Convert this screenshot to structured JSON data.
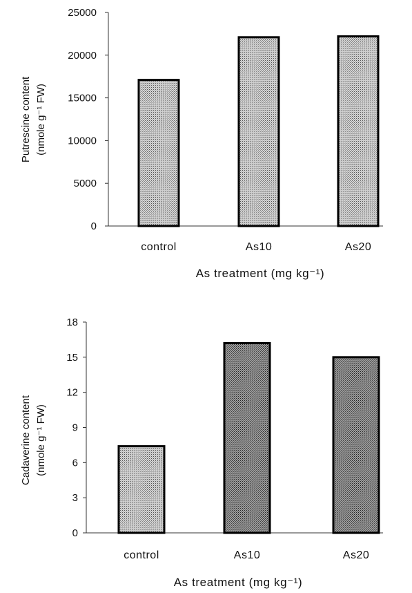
{
  "chart_data": [
    {
      "type": "bar",
      "categories": [
        "control",
        "As10",
        "As20"
      ],
      "values": [
        17100,
        22100,
        22200
      ],
      "ylim": [
        0,
        25000
      ],
      "yticks": [
        "0",
        "5000",
        "10000",
        "15000",
        "20000",
        "25000"
      ],
      "ylabel_line1": "Putrescine content",
      "ylabel_line2": "(nmole g⁻¹ FW)",
      "xlabel": "As treatment (mg kg⁻¹)",
      "grid": false,
      "bar_fill": "#b9b9b9"
    },
    {
      "type": "bar",
      "categories": [
        "control",
        "As10",
        "As20"
      ],
      "values": [
        7.4,
        16.2,
        15.0
      ],
      "ylim": [
        0,
        18
      ],
      "yticks": [
        "0",
        "3",
        "6",
        "9",
        "12",
        "15",
        "18"
      ],
      "ylabel_line1": "Cadaverine content",
      "ylabel_line2": "(nmole g⁻¹ FW)",
      "xlabel": "As treatment (mg kg⁻¹)",
      "grid": false,
      "bar_fills": [
        "#c4c4c4",
        "#8f8f8f",
        "#8f8f8f"
      ]
    }
  ]
}
